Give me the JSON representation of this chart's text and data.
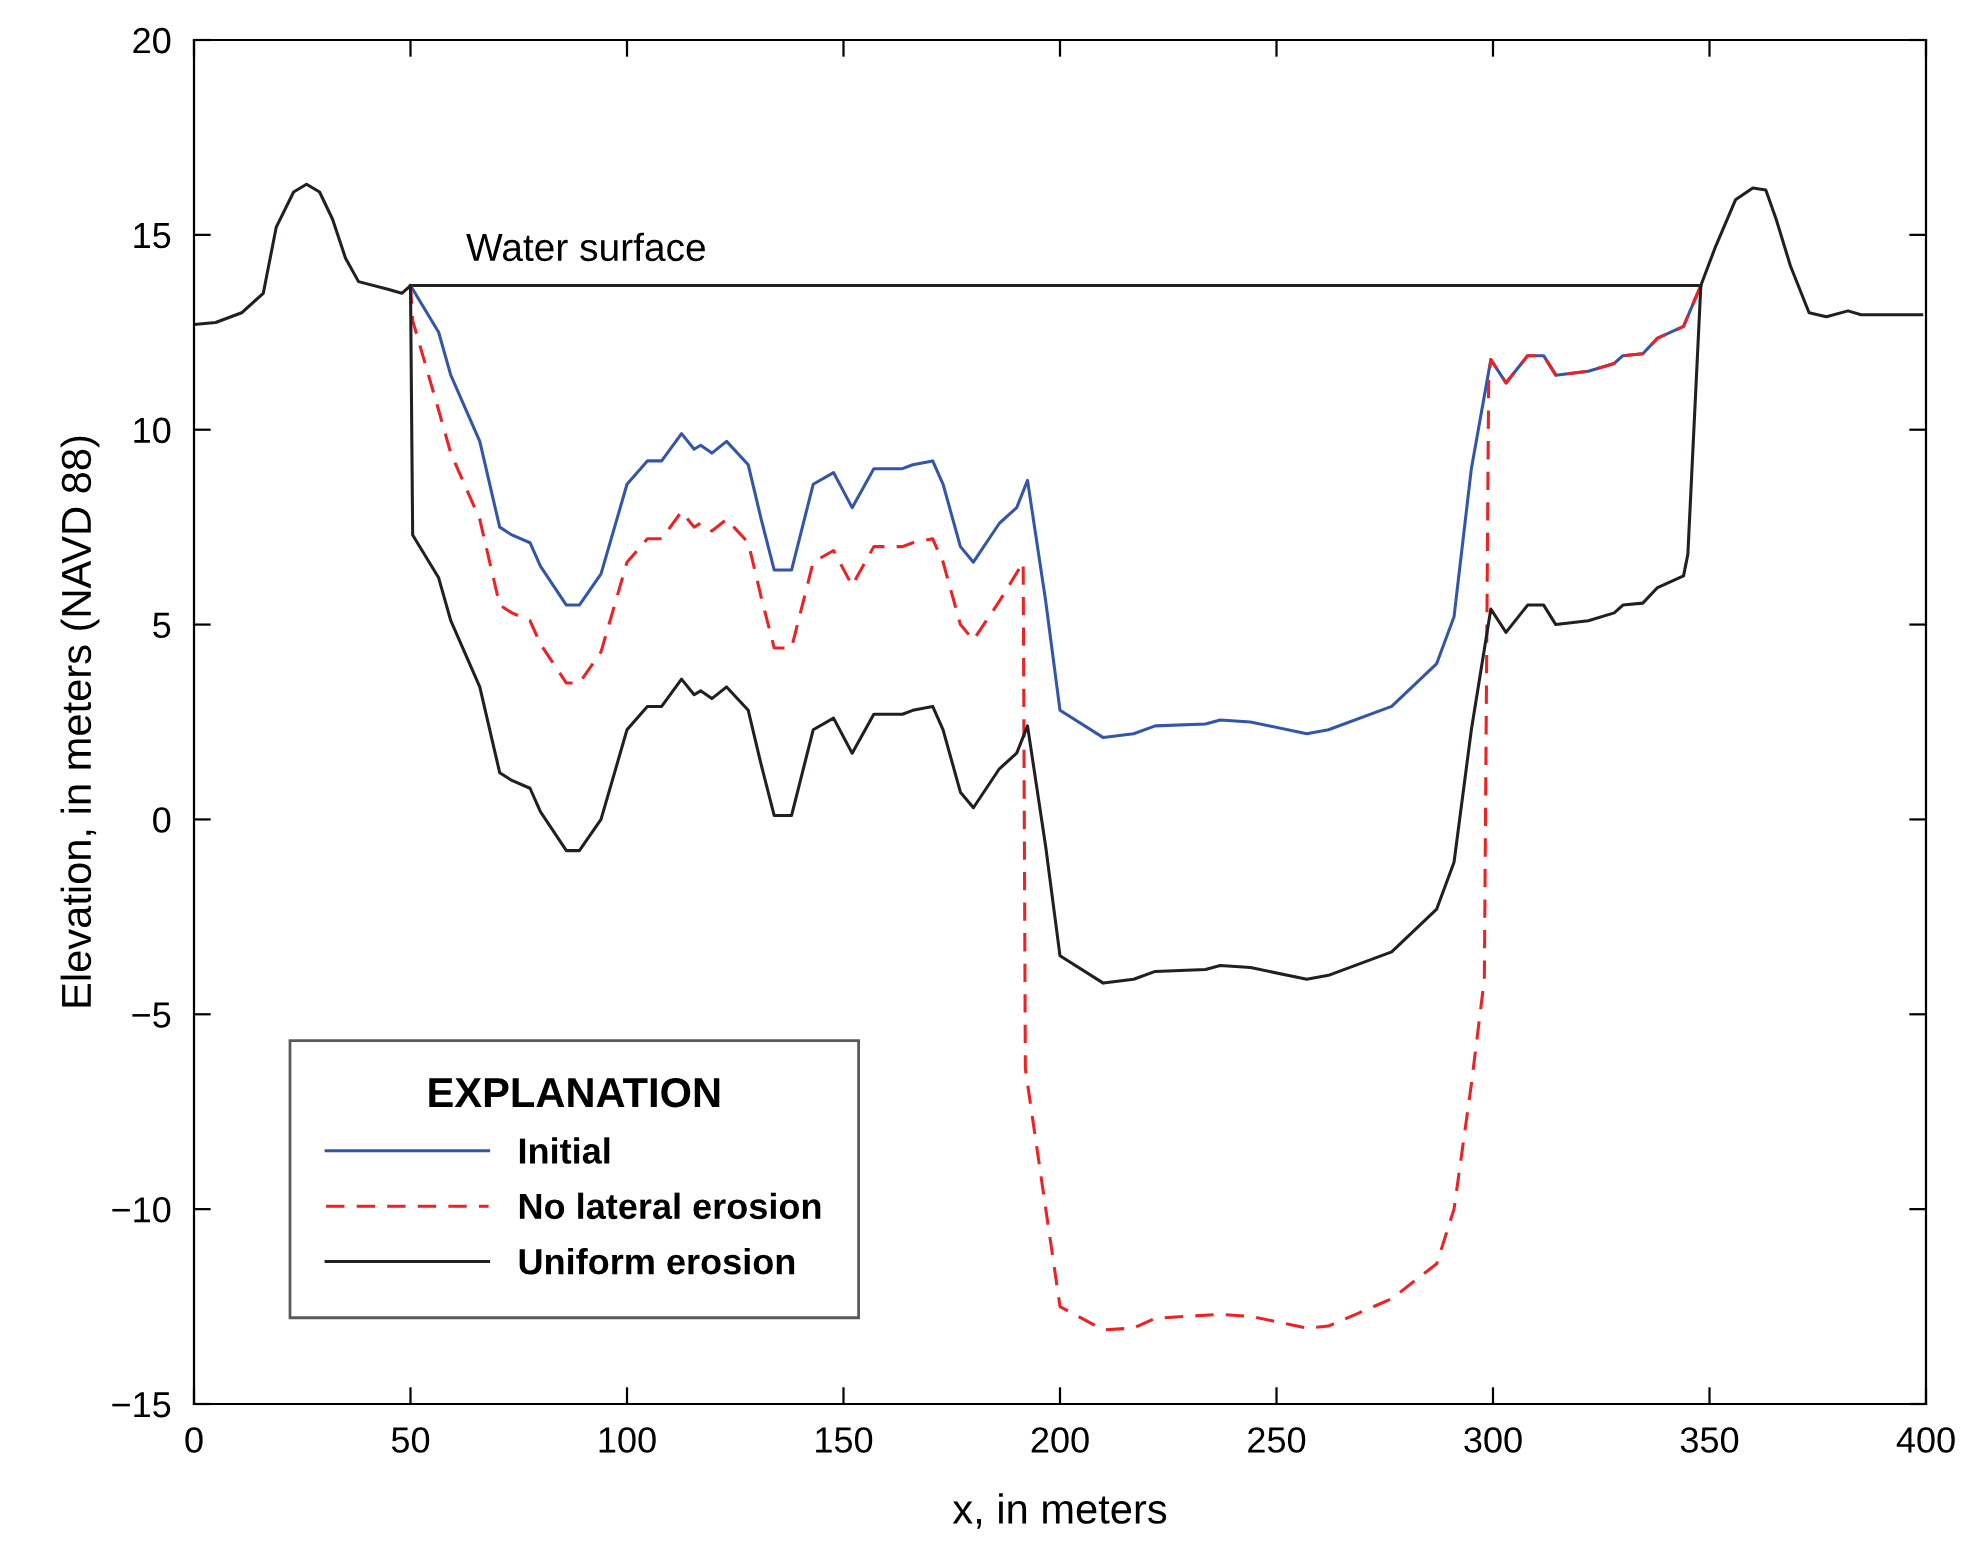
{
  "chart_data": {
    "type": "line",
    "xlabel": "x, in meters",
    "ylabel": "Elevation, in meters (NAVD 88)",
    "legend_title": "EXPLANATION",
    "legend": "bottom left",
    "grid": false,
    "marker": "none",
    "xlim": [
      0,
      400
    ],
    "xticks": [
      0,
      50,
      100,
      150,
      200,
      250,
      300,
      350,
      400
    ],
    "ylim": [
      -15,
      20
    ],
    "yticks": [
      {
        "value": -15,
        "label": "−15"
      },
      {
        "value": -10,
        "label": "−10"
      },
      {
        "value": -5,
        "label": "−5"
      },
      0,
      5,
      10,
      15,
      20
    ],
    "annotations": [
      "Water surface"
    ],
    "series": [
      {
        "name": null,
        "color": "#231f20",
        "line_style": "solid",
        "x": [
          50,
          348
        ],
        "values": [
          13.7,
          13.7
        ]
      },
      {
        "name": "Initial",
        "color": "#3355aa",
        "line_style": "solid",
        "x": [
          50,
          56.5,
          59.3,
          66,
          70.6,
          73.4,
          77.6,
          80,
          86,
          89,
          94,
          100,
          104.7,
          108,
          112.6,
          115.5,
          117,
          119.6,
          123,
          128,
          131,
          134,
          138,
          143,
          147.7,
          152,
          157,
          163.6,
          166,
          170.6,
          173,
          177,
          180,
          186,
          190,
          192.5,
          196.7,
          200,
          210,
          217,
          222,
          233.6,
          237,
          244,
          257,
          262,
          276.6,
          287,
          291,
          295,
          299.5,
          303,
          308,
          311.7,
          314.5,
          322,
          328,
          330,
          334.6,
          338,
          344,
          348
        ],
        "values": [
          13.7,
          12.5,
          11.4,
          9.7,
          7.5,
          7.3,
          7.1,
          6.5,
          5.5,
          5.5,
          6.3,
          8.6,
          9.2,
          9.2,
          9.9,
          9.5,
          9.6,
          9.4,
          9.7,
          9.1,
          7.7,
          6.4,
          6.4,
          8.6,
          8.9,
          8.0,
          9.0,
          9.0,
          9.1,
          9.2,
          8.6,
          7.0,
          6.6,
          7.6,
          8.0,
          8.7,
          5.6,
          2.8,
          2.1,
          2.2,
          2.4,
          2.45,
          2.55,
          2.5,
          2.2,
          2.3,
          2.9,
          4.0,
          5.2,
          9.0,
          11.8,
          11.2,
          11.9,
          11.9,
          11.4,
          11.5,
          11.7,
          11.9,
          11.95,
          12.35,
          12.65,
          13.7
        ]
      },
      {
        "name": "No lateral erosion",
        "color": "#ee2222",
        "line_style": "dashed",
        "x": [
          50,
          50.5,
          56.5,
          59.3,
          66,
          70.6,
          73.4,
          77.6,
          80,
          86,
          89,
          94,
          100,
          104.7,
          108,
          112.6,
          115.5,
          117,
          119.6,
          123,
          128,
          131,
          134,
          138,
          143,
          147.7,
          152,
          157,
          163.6,
          166,
          170.6,
          173,
          177,
          180,
          186,
          191.5,
          192,
          200,
          210,
          217,
          222,
          237,
          244,
          257,
          262,
          276.6,
          287,
          291,
          295,
          298,
          299,
          299.5,
          303,
          308,
          311.7,
          314.5,
          322,
          328,
          330,
          334.6,
          338,
          344,
          348
        ],
        "values": [
          13.7,
          12.8,
          10.5,
          9.4,
          7.7,
          5.5,
          5.3,
          5.1,
          4.5,
          3.5,
          3.5,
          4.3,
          6.6,
          7.2,
          7.2,
          7.9,
          7.5,
          7.6,
          7.4,
          7.7,
          7.1,
          5.7,
          4.4,
          4.4,
          6.6,
          6.9,
          6.0,
          7.0,
          7.0,
          7.1,
          7.2,
          6.6,
          5.0,
          4.6,
          5.6,
          6.6,
          -6.4,
          -12.5,
          -13.1,
          -13.05,
          -12.8,
          -12.7,
          -12.75,
          -13.05,
          -13.0,
          -12.3,
          -11.4,
          -10.0,
          -6.8,
          -4.1,
          11.3,
          11.8,
          11.2,
          11.9,
          11.9,
          11.4,
          11.5,
          11.7,
          11.9,
          11.95,
          12.35,
          12.65,
          13.7
        ]
      },
      {
        "name": "Uniform erosion",
        "color": "#231f20",
        "line_style": "solid",
        "x": [
          0,
          5,
          11,
          16,
          19,
          23,
          26,
          29,
          32,
          35,
          38,
          45,
          48,
          50,
          50.5,
          56.5,
          59.3,
          66,
          70.6,
          73.4,
          77.6,
          80,
          86,
          89,
          94,
          100,
          104.7,
          108,
          112.6,
          115.5,
          117,
          119.6,
          123,
          128,
          131,
          134,
          138,
          143,
          147.7,
          152,
          157,
          163.6,
          166,
          170.6,
          173,
          177,
          180,
          186,
          190,
          192.5,
          196.7,
          200,
          210,
          217,
          222,
          233.6,
          237,
          244,
          257,
          262,
          276.6,
          287,
          291,
          295,
          299.5,
          303,
          308,
          311.7,
          314.5,
          322,
          328,
          330,
          334.6,
          338,
          344,
          345,
          348,
          351.4,
          356,
          360,
          363,
          365.4,
          368.7,
          373,
          377,
          382,
          385,
          399
        ],
        "values": [
          12.7,
          12.75,
          13.0,
          13.5,
          15.2,
          16.1,
          16.3,
          16.1,
          15.4,
          14.4,
          13.8,
          13.6,
          13.5,
          13.7,
          7.3,
          6.2,
          5.1,
          3.4,
          1.2,
          1.0,
          0.8,
          0.2,
          -0.8,
          -0.8,
          0.0,
          2.3,
          2.9,
          2.9,
          3.6,
          3.2,
          3.3,
          3.1,
          3.4,
          2.8,
          1.4,
          0.1,
          0.1,
          2.3,
          2.6,
          1.7,
          2.7,
          2.7,
          2.8,
          2.9,
          2.3,
          0.7,
          0.3,
          1.3,
          1.7,
          2.4,
          -0.7,
          -3.5,
          -4.2,
          -4.1,
          -3.9,
          -3.85,
          -3.75,
          -3.8,
          -4.1,
          -4.0,
          -3.4,
          -2.3,
          -1.1,
          2.3,
          5.4,
          4.8,
          5.5,
          5.5,
          5.0,
          5.1,
          5.3,
          5.5,
          5.55,
          5.95,
          6.25,
          6.8,
          13.7,
          14.7,
          15.9,
          16.2,
          16.15,
          15.4,
          14.2,
          13.0,
          12.9,
          13.05,
          12.95,
          12.95
        ]
      }
    ]
  }
}
